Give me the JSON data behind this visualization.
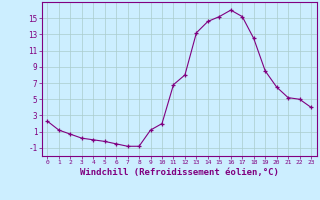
{
  "x": [
    0,
    1,
    2,
    3,
    4,
    5,
    6,
    7,
    8,
    9,
    10,
    11,
    12,
    13,
    14,
    15,
    16,
    17,
    18,
    19,
    20,
    21,
    22,
    23
  ],
  "y": [
    2.3,
    1.2,
    0.7,
    0.2,
    0.0,
    -0.2,
    -0.5,
    -0.8,
    -0.8,
    1.2,
    2.0,
    6.8,
    8.0,
    13.2,
    14.6,
    15.2,
    16.0,
    15.2,
    12.5,
    8.5,
    6.5,
    5.2,
    5.0,
    4.0
  ],
  "line_color": "#800080",
  "marker": "+",
  "bg_color": "#cceeff",
  "grid_color": "#aacccc",
  "xlabel": "Windchill (Refroidissement éolien,°C)",
  "xlabel_fontsize": 6.5,
  "xlim": [
    -0.5,
    23.5
  ],
  "ylim": [
    -2,
    17
  ],
  "yticks": [
    -1,
    1,
    3,
    5,
    7,
    9,
    11,
    13,
    15
  ],
  "xticks": [
    0,
    1,
    2,
    3,
    4,
    5,
    6,
    7,
    8,
    9,
    10,
    11,
    12,
    13,
    14,
    15,
    16,
    17,
    18,
    19,
    20,
    21,
    22,
    23
  ]
}
